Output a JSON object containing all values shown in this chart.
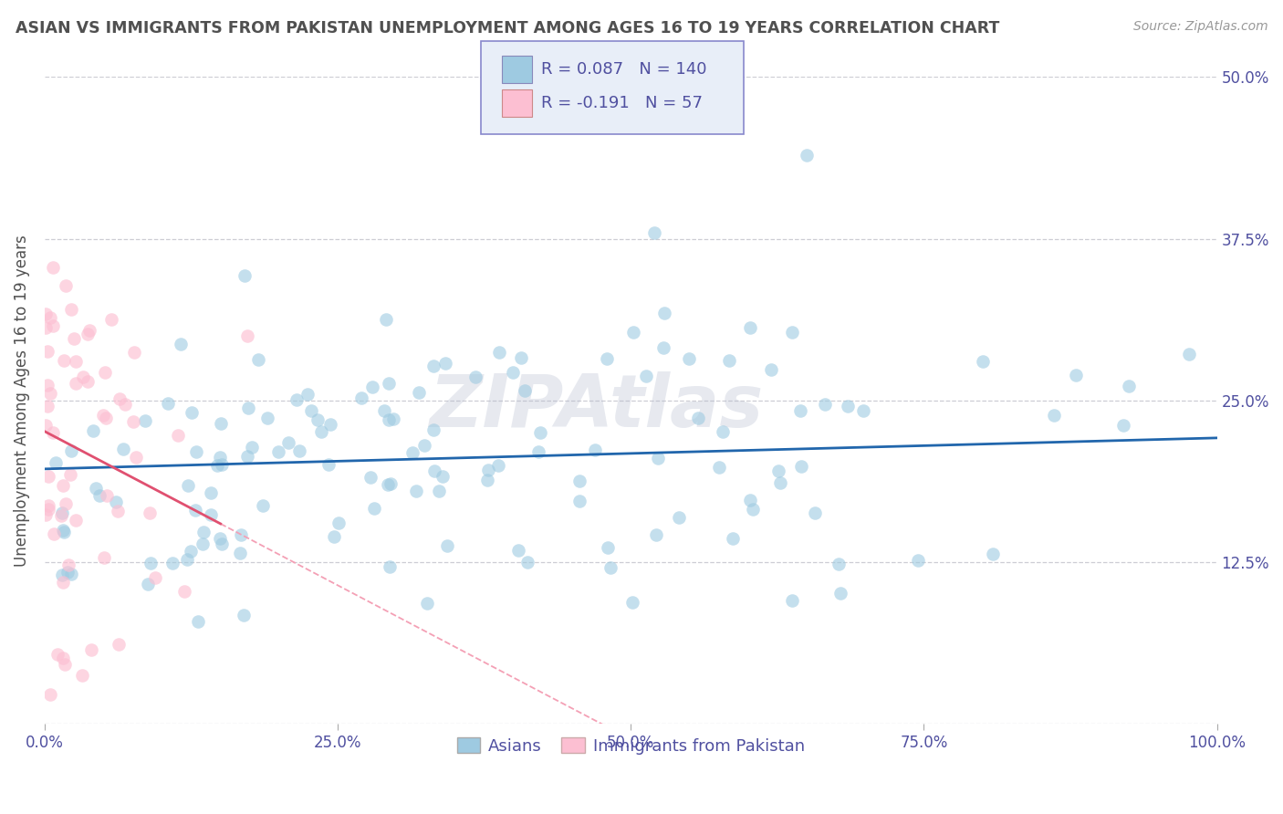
{
  "title": "ASIAN VS IMMIGRANTS FROM PAKISTAN UNEMPLOYMENT AMONG AGES 16 TO 19 YEARS CORRELATION CHART",
  "source": "Source: ZipAtlas.com",
  "ylabel": "Unemployment Among Ages 16 to 19 years",
  "xlim": [
    0,
    100
  ],
  "ylim": [
    0,
    50
  ],
  "xticks": [
    0,
    25,
    50,
    75,
    100
  ],
  "xticklabels": [
    "0.0%",
    "25.0%",
    "50.0%",
    "75.0%",
    "100.0%"
  ],
  "yticks": [
    0,
    12.5,
    25.0,
    37.5,
    50.0
  ],
  "yticklabels_right": [
    "",
    "12.5%",
    "25.0%",
    "37.5%",
    "50.0%"
  ],
  "asian_R": 0.087,
  "asian_N": 140,
  "pakistan_R": -0.191,
  "pakistan_N": 57,
  "blue_dot_color": "#9ecae1",
  "pink_dot_color": "#fcbfd2",
  "blue_line_color": "#2166ac",
  "pink_line_color": "#e05070",
  "pink_dash_color": "#f4a0b5",
  "watermark": "ZIPAtlas",
  "legend_labels": [
    "Asians",
    "Immigrants from Pakistan"
  ],
  "background_color": "#ffffff",
  "grid_color": "#c8c8d0",
  "title_color": "#505050",
  "axis_label_color": "#505050",
  "tick_color": "#5050a0",
  "legend_box_color": "#e8eef8",
  "legend_border_color": "#8888cc"
}
